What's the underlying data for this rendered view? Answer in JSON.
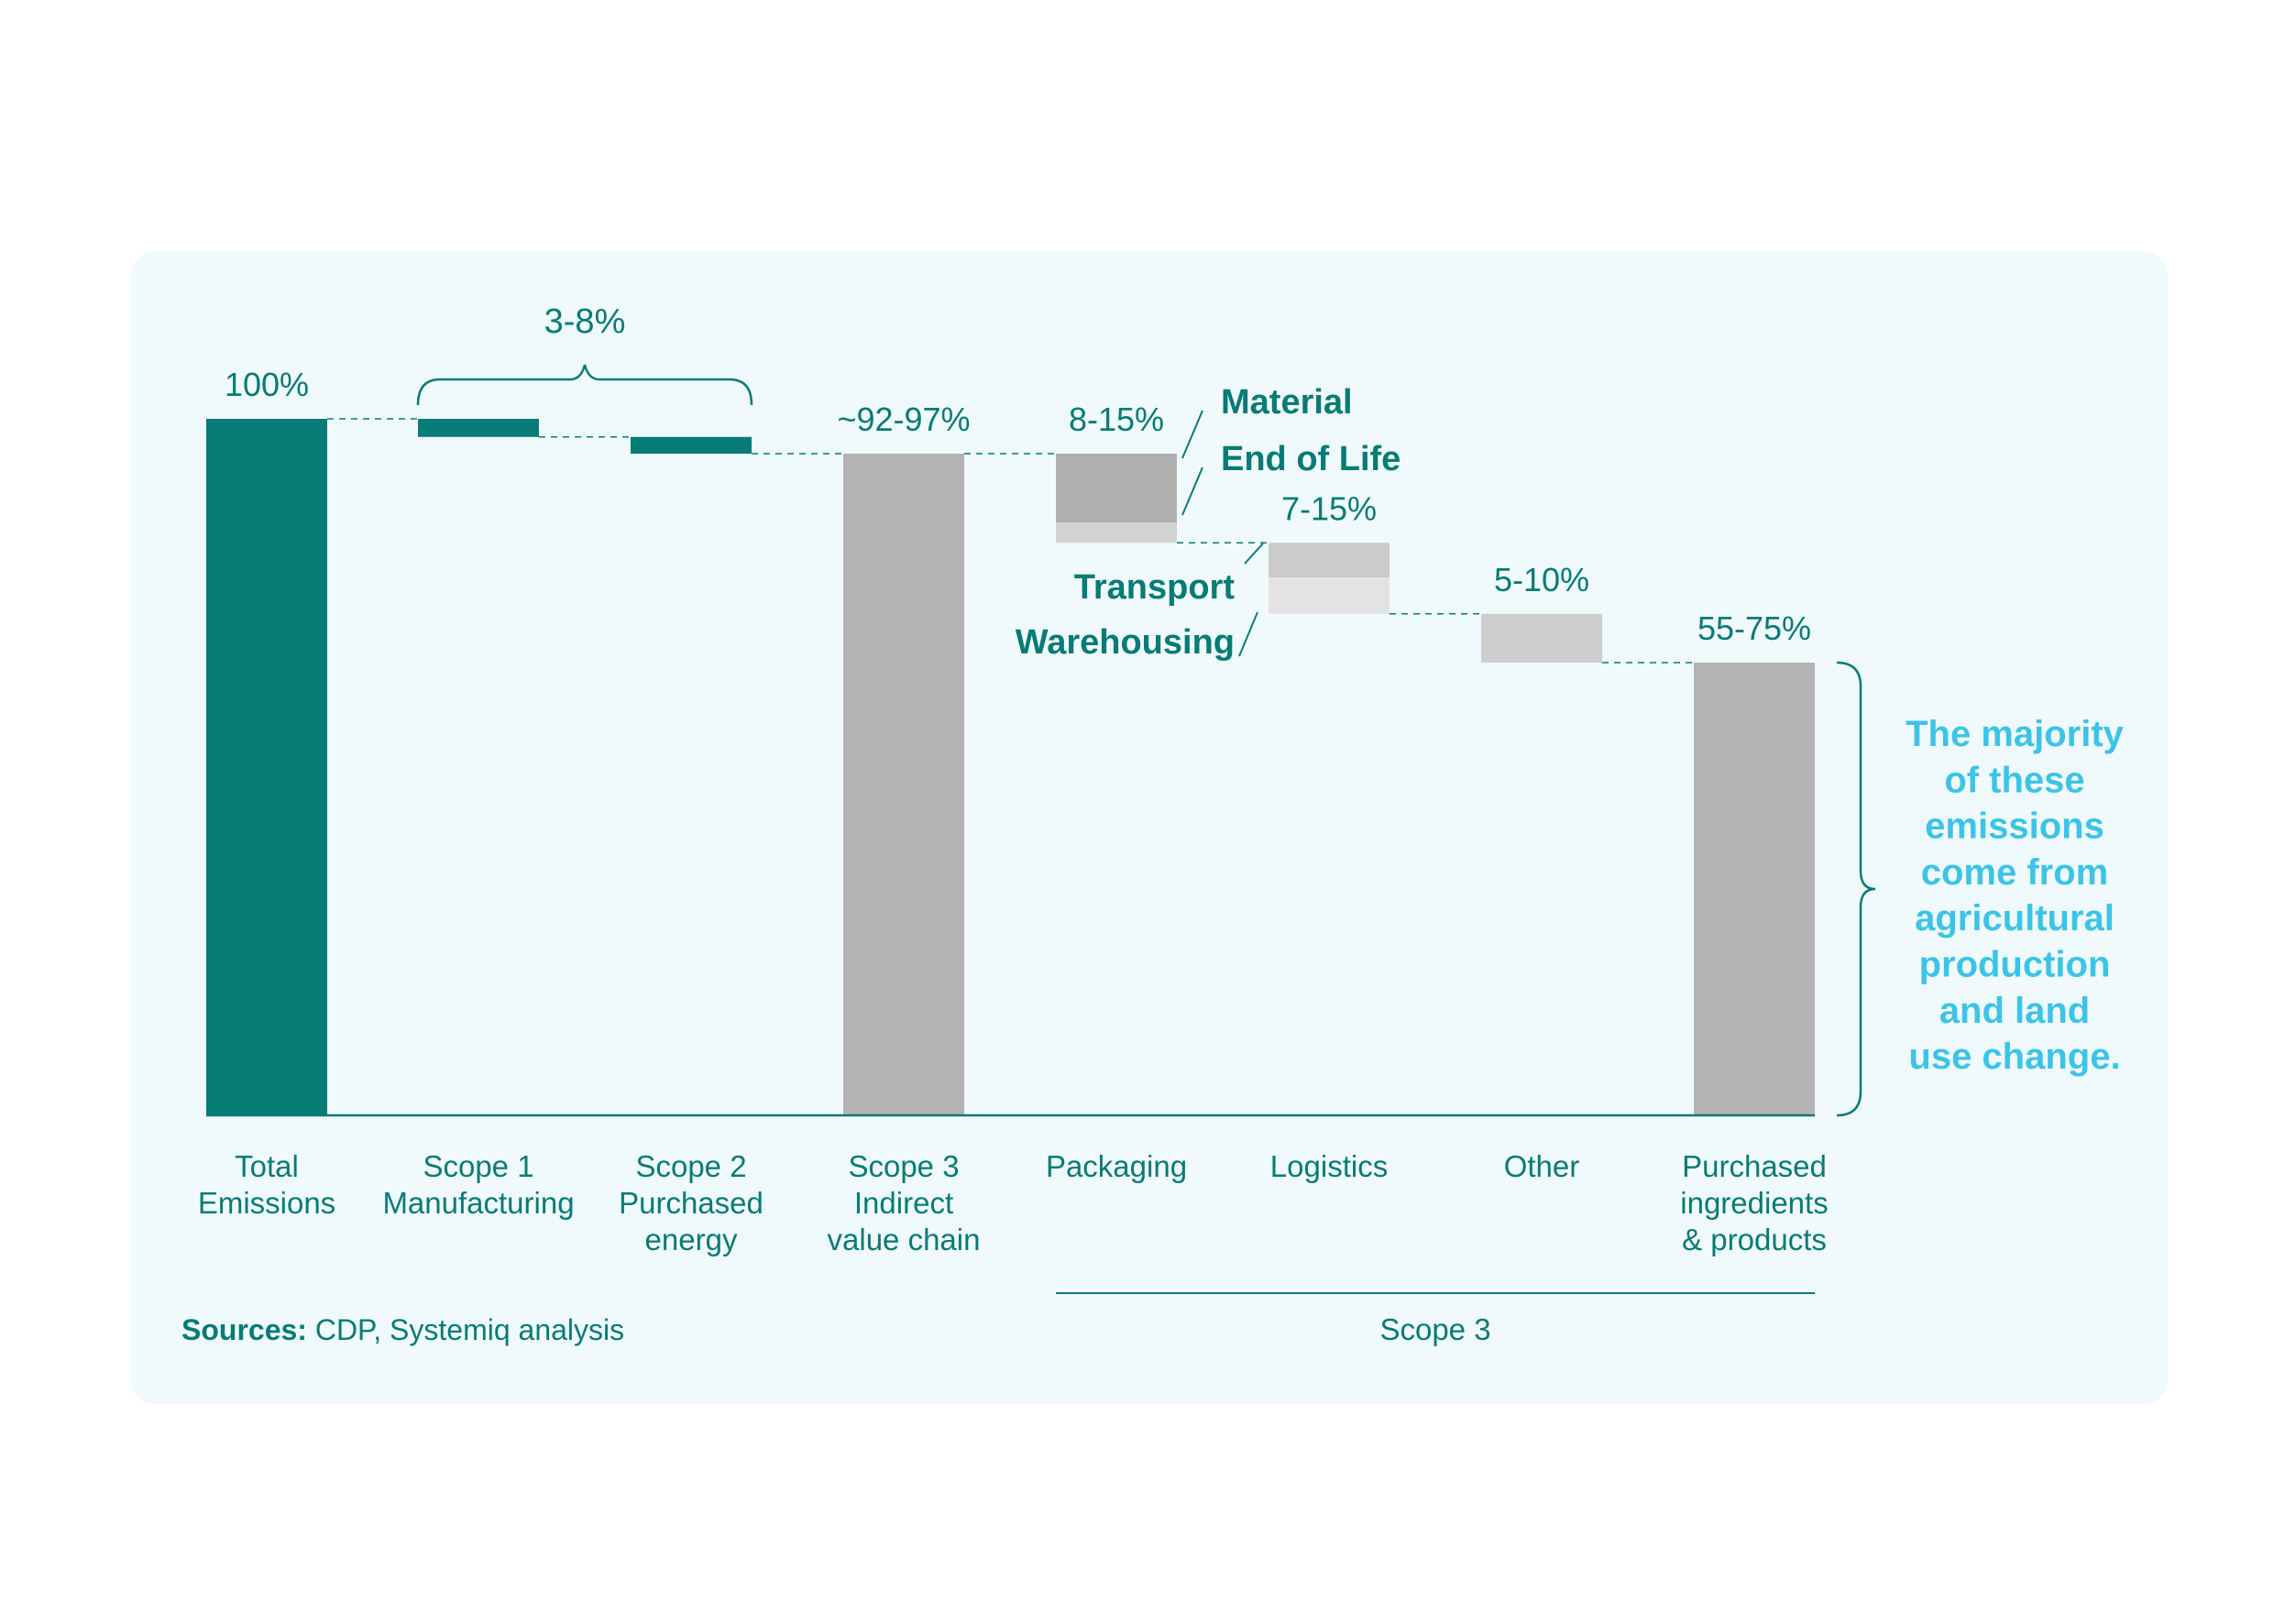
{
  "colors": {
    "teal": "#077b76",
    "gray_dark": "#b3b3b3",
    "gray_material": "#b0b0b0",
    "gray_end_of_life": "#d2d2d2",
    "gray_transport": "#cbcbcb",
    "gray_warehousing": "#e3e3e3",
    "gray_other": "#cecece",
    "callout": "#3cc4e8",
    "panel_bg": "#f0fafc"
  },
  "chart_data": {
    "type": "bar",
    "subtype": "waterfall",
    "unit": "% of total emissions",
    "ylim": [
      0,
      100
    ],
    "categories": [
      "Total\nEmissions",
      "Scope 1\nManufacturing",
      "Scope 2\nPurchased\nenergy",
      "Scope 3\nIndirect\nvalue chain",
      "Packaging",
      "Logistics",
      "Other",
      "Purchased\ningredients\n& products"
    ],
    "bars": [
      {
        "category": "Total Emissions",
        "label": "100%",
        "bottom": 0,
        "top": 100,
        "color": "teal"
      },
      {
        "category": "Scope 1 Manufacturing",
        "label": "",
        "bottom": 97.4,
        "top": 100,
        "color": "teal"
      },
      {
        "category": "Scope 2 Purchased energy",
        "label": "",
        "bottom": 95,
        "top": 97.4,
        "color": "teal"
      },
      {
        "category": "Scope 3 Indirect value chain",
        "label": "~92-97%",
        "bottom": 0,
        "top": 95,
        "color": "gray_dark"
      },
      {
        "category": "Packaging",
        "label": "8-15%",
        "segments": [
          {
            "name": "Material",
            "bottom": 85.1,
            "top": 95,
            "color": "gray_material"
          },
          {
            "name": "End of Life",
            "bottom": 82.2,
            "top": 85.1,
            "color": "gray_end_of_life"
          }
        ]
      },
      {
        "category": "Logistics",
        "label": "7-15%",
        "segments": [
          {
            "name": "Transport",
            "bottom": 77.2,
            "top": 82.2,
            "color": "gray_transport"
          },
          {
            "name": "Warehousing",
            "bottom": 72,
            "top": 77.2,
            "color": "gray_warehousing"
          }
        ]
      },
      {
        "category": "Other",
        "label": "5-10%",
        "bottom": 65,
        "top": 72,
        "color": "gray_other"
      },
      {
        "category": "Purchased ingredients & products",
        "label": "55-75%",
        "bottom": 0,
        "top": 65,
        "color": "gray_dark"
      }
    ],
    "scope12_bracket_label": "3-8%",
    "segment_labels": {
      "material": "Material",
      "end_of_life": "End of Life",
      "transport": "Transport",
      "warehousing": "Warehousing"
    },
    "scope3_group_label": "Scope 3",
    "callout_lines": [
      "The majority",
      "of these",
      "emissions",
      "come from",
      "agricultural",
      "production",
      "and land",
      "use change."
    ],
    "sources_bold": "Sources:",
    "sources_text": " CDP, Systemiq analysis"
  }
}
